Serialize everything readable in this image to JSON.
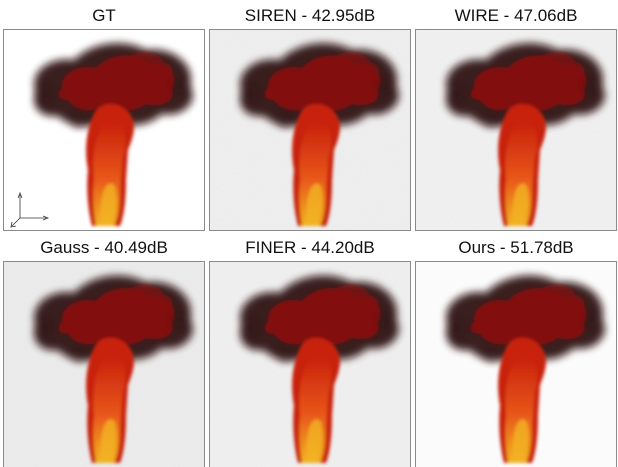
{
  "figure": {
    "panels": [
      {
        "id": "gt",
        "caption": "GT",
        "bg": "#ffffff",
        "noise": 0
      },
      {
        "id": "siren",
        "caption": "SIREN - 42.95dB",
        "bg": "#f2f2f2",
        "noise": 1
      },
      {
        "id": "wire",
        "caption": "WIRE - 47.06dB",
        "bg": "#f4f4f4",
        "noise": 1
      },
      {
        "id": "gauss",
        "caption": "Gauss - 40.49dB",
        "bg": "#efefef",
        "noise": 1
      },
      {
        "id": "finer",
        "caption": "FINER - 44.20dB",
        "bg": "#f3f3f3",
        "noise": 1
      },
      {
        "id": "ours",
        "caption": "Ours - 51.78dB",
        "bg": "#fbfbfb",
        "noise": 0
      }
    ],
    "colors": {
      "smoke_dark": "#2a0a0a",
      "smoke_red": "#8b0f0f",
      "flame_red": "#c8200c",
      "flame_orange": "#e8571a",
      "flame_yellow": "#f2b322"
    }
  }
}
